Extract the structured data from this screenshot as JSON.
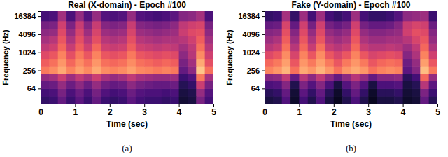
{
  "chart_data": [
    {
      "type": "heatmap",
      "title": "Real (X-domain) - Epoch #100",
      "x_label": "Time (sec)",
      "y_label": "Frequency (Hz)",
      "caption": "(a)",
      "log": "y",
      "xlim": [
        0,
        5
      ],
      "xticks": [
        0,
        1,
        2,
        3,
        4,
        5
      ],
      "ylim": [
        20,
        24000
      ],
      "yticks": [
        64,
        256,
        1024,
        4096,
        16384
      ],
      "zlim": [
        0,
        1
      ],
      "x_bins": [
        0,
        0.25,
        0.5,
        0.75,
        1,
        1.25,
        1.5,
        1.75,
        2,
        2.25,
        2.5,
        2.75,
        3,
        3.25,
        3.5,
        3.75,
        4,
        4.25,
        4.5,
        4.75,
        5
      ],
      "y_bins": [
        20,
        36,
        64,
        115,
        200,
        360,
        640,
        1150,
        2000,
        3600,
        6400,
        11500,
        24000
      ],
      "z": [
        [
          0.18,
          0.2,
          0.3,
          0.2,
          0.28,
          0.2,
          0.3,
          0.2,
          0.18,
          0.2,
          0.28,
          0.22,
          0.2,
          0.2,
          0.18,
          0.2,
          0.1,
          0.12,
          0.35,
          0.22
        ],
        [
          0.22,
          0.24,
          0.35,
          0.24,
          0.32,
          0.24,
          0.34,
          0.25,
          0.22,
          0.24,
          0.32,
          0.26,
          0.24,
          0.24,
          0.22,
          0.24,
          0.12,
          0.14,
          0.42,
          0.26
        ],
        [
          0.3,
          0.32,
          0.42,
          0.32,
          0.4,
          0.32,
          0.42,
          0.33,
          0.3,
          0.32,
          0.4,
          0.34,
          0.32,
          0.3,
          0.3,
          0.32,
          0.15,
          0.18,
          0.55,
          0.34
        ],
        [
          0.42,
          0.45,
          0.55,
          0.44,
          0.52,
          0.46,
          0.55,
          0.46,
          0.42,
          0.45,
          0.52,
          0.46,
          0.44,
          0.42,
          0.42,
          0.44,
          0.2,
          0.25,
          0.72,
          0.46
        ],
        [
          0.72,
          0.76,
          0.82,
          0.74,
          0.8,
          0.75,
          0.82,
          0.76,
          0.74,
          0.76,
          0.8,
          0.75,
          0.74,
          0.72,
          0.74,
          0.72,
          0.3,
          0.4,
          0.88,
          0.7
        ],
        [
          0.66,
          0.7,
          0.78,
          0.68,
          0.76,
          0.7,
          0.78,
          0.7,
          0.68,
          0.7,
          0.76,
          0.7,
          0.68,
          0.66,
          0.68,
          0.66,
          0.35,
          0.45,
          0.82,
          0.62
        ],
        [
          0.6,
          0.64,
          0.74,
          0.62,
          0.72,
          0.64,
          0.74,
          0.64,
          0.62,
          0.64,
          0.72,
          0.64,
          0.62,
          0.6,
          0.62,
          0.6,
          0.4,
          0.5,
          0.76,
          0.56
        ],
        [
          0.52,
          0.56,
          0.68,
          0.54,
          0.66,
          0.56,
          0.68,
          0.56,
          0.54,
          0.56,
          0.66,
          0.56,
          0.54,
          0.52,
          0.54,
          0.52,
          0.45,
          0.52,
          0.7,
          0.5
        ],
        [
          0.46,
          0.5,
          0.64,
          0.48,
          0.62,
          0.5,
          0.62,
          0.5,
          0.48,
          0.5,
          0.62,
          0.5,
          0.48,
          0.46,
          0.48,
          0.48,
          0.5,
          0.56,
          0.66,
          0.45
        ],
        [
          0.4,
          0.42,
          0.6,
          0.42,
          0.58,
          0.44,
          0.58,
          0.44,
          0.42,
          0.44,
          0.58,
          0.44,
          0.42,
          0.4,
          0.42,
          0.44,
          0.55,
          0.6,
          0.62,
          0.4
        ],
        [
          0.34,
          0.36,
          0.56,
          0.36,
          0.54,
          0.38,
          0.54,
          0.38,
          0.36,
          0.38,
          0.54,
          0.38,
          0.36,
          0.34,
          0.36,
          0.4,
          0.52,
          0.56,
          0.58,
          0.35
        ],
        [
          0.22,
          0.24,
          0.45,
          0.24,
          0.42,
          0.26,
          0.42,
          0.26,
          0.24,
          0.26,
          0.42,
          0.26,
          0.24,
          0.22,
          0.24,
          0.28,
          0.38,
          0.4,
          0.46,
          0.24
        ]
      ]
    },
    {
      "type": "heatmap",
      "title": "Fake (Y-domain) - Epoch #100",
      "x_label": "Time (sec)",
      "y_label": "Frequency (Hz)",
      "caption": "(b)",
      "log": "y",
      "xlim": [
        0,
        5
      ],
      "xticks": [
        0,
        1,
        2,
        3,
        4,
        5
      ],
      "ylim": [
        20,
        24000
      ],
      "yticks": [
        64,
        256,
        1024,
        4096,
        16384
      ],
      "zlim": [
        0,
        1
      ],
      "x_bins": [
        0,
        0.25,
        0.5,
        0.75,
        1,
        1.25,
        1.5,
        1.75,
        2,
        2.25,
        2.5,
        2.75,
        3,
        3.25,
        3.5,
        3.75,
        4,
        4.25,
        4.5,
        4.75,
        5
      ],
      "y_bins": [
        20,
        36,
        64,
        115,
        200,
        360,
        640,
        1150,
        2000,
        3600,
        6400,
        11500,
        24000
      ],
      "z": [
        [
          0.12,
          0.14,
          0.25,
          0.08,
          0.22,
          0.14,
          0.25,
          0.12,
          0.06,
          0.14,
          0.24,
          0.14,
          0.06,
          0.12,
          0.12,
          0.14,
          0.08,
          0.1,
          0.3,
          0.15
        ],
        [
          0.16,
          0.18,
          0.3,
          0.1,
          0.28,
          0.18,
          0.3,
          0.16,
          0.08,
          0.18,
          0.3,
          0.18,
          0.08,
          0.16,
          0.16,
          0.18,
          0.1,
          0.12,
          0.36,
          0.2
        ],
        [
          0.24,
          0.26,
          0.38,
          0.14,
          0.36,
          0.26,
          0.38,
          0.24,
          0.12,
          0.26,
          0.36,
          0.26,
          0.12,
          0.24,
          0.24,
          0.26,
          0.12,
          0.15,
          0.5,
          0.28
        ],
        [
          0.38,
          0.4,
          0.52,
          0.3,
          0.5,
          0.4,
          0.52,
          0.4,
          0.3,
          0.4,
          0.5,
          0.42,
          0.3,
          0.38,
          0.38,
          0.4,
          0.16,
          0.22,
          0.68,
          0.42
        ],
        [
          0.74,
          0.78,
          0.84,
          0.7,
          0.82,
          0.78,
          0.84,
          0.78,
          0.7,
          0.78,
          0.82,
          0.78,
          0.7,
          0.74,
          0.76,
          0.74,
          0.28,
          0.38,
          0.86,
          0.72
        ],
        [
          0.68,
          0.72,
          0.8,
          0.64,
          0.78,
          0.72,
          0.8,
          0.72,
          0.64,
          0.72,
          0.78,
          0.72,
          0.64,
          0.68,
          0.7,
          0.68,
          0.32,
          0.42,
          0.8,
          0.64
        ],
        [
          0.6,
          0.64,
          0.76,
          0.58,
          0.74,
          0.64,
          0.76,
          0.64,
          0.58,
          0.64,
          0.74,
          0.64,
          0.58,
          0.6,
          0.62,
          0.6,
          0.38,
          0.48,
          0.74,
          0.56
        ],
        [
          0.5,
          0.54,
          0.7,
          0.5,
          0.68,
          0.54,
          0.7,
          0.54,
          0.5,
          0.54,
          0.68,
          0.54,
          0.5,
          0.5,
          0.52,
          0.5,
          0.44,
          0.52,
          0.68,
          0.48
        ],
        [
          0.44,
          0.48,
          0.66,
          0.44,
          0.64,
          0.48,
          0.64,
          0.48,
          0.44,
          0.48,
          0.64,
          0.48,
          0.44,
          0.44,
          0.46,
          0.46,
          0.5,
          0.58,
          0.64,
          0.42
        ],
        [
          0.38,
          0.4,
          0.62,
          0.38,
          0.6,
          0.42,
          0.6,
          0.42,
          0.38,
          0.42,
          0.6,
          0.42,
          0.38,
          0.38,
          0.4,
          0.42,
          0.56,
          0.62,
          0.6,
          0.38
        ],
        [
          0.3,
          0.32,
          0.58,
          0.3,
          0.56,
          0.34,
          0.56,
          0.34,
          0.3,
          0.34,
          0.56,
          0.34,
          0.3,
          0.3,
          0.32,
          0.38,
          0.54,
          0.58,
          0.56,
          0.32
        ],
        [
          0.18,
          0.2,
          0.46,
          0.18,
          0.44,
          0.22,
          0.44,
          0.22,
          0.18,
          0.22,
          0.44,
          0.22,
          0.18,
          0.18,
          0.2,
          0.26,
          0.4,
          0.42,
          0.44,
          0.2
        ]
      ]
    }
  ]
}
